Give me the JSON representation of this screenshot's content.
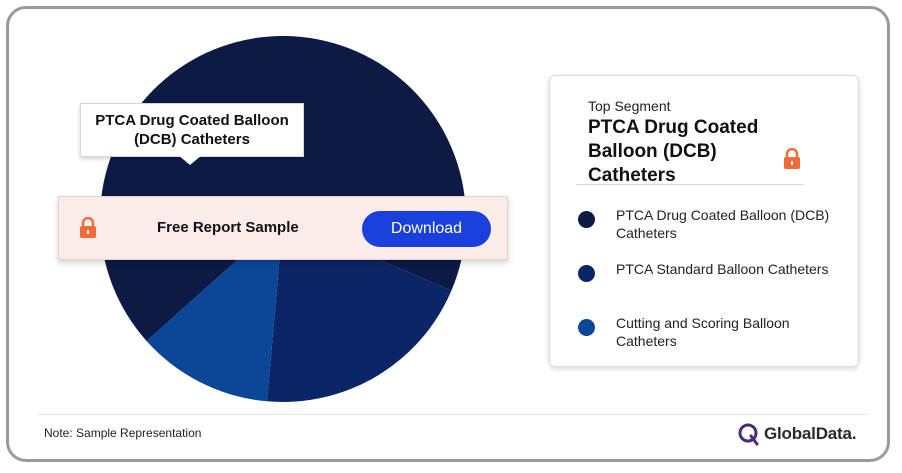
{
  "chart_data": {
    "type": "pie",
    "title": "",
    "series": [
      {
        "name": "PTCA Drug Coated Balloon (DCB) Catheters",
        "value": 68,
        "color": "#0c1a45"
      },
      {
        "name": "PTCA Standard Balloon Catheters",
        "value": 20,
        "color": "#0c2566"
      },
      {
        "name": "Cutting and Scoring Balloon Catheters",
        "value": 12,
        "color": "#0c4797"
      }
    ],
    "legend_position": "right"
  },
  "callout": {
    "text": "PTCA Drug Coated Balloon (DCB) Catheters"
  },
  "sample": {
    "label": "Free Report Sample",
    "button_label": "Download"
  },
  "top_segment": {
    "label": "Top Segment",
    "name": "PTCA Drug Coated Balloon (DCB) Catheters"
  },
  "legend": {
    "items": [
      {
        "label": "PTCA Drug Coated Balloon (DCB) Catheters",
        "color": "#0c1a45"
      },
      {
        "label": "PTCA Standard Balloon Catheters",
        "color": "#0c2566"
      },
      {
        "label": "Cutting and Scoring Balloon Catheters",
        "color": "#0c4797"
      }
    ]
  },
  "note": "Note: Sample Representation",
  "brand": {
    "name": "GlobalData.",
    "color": "#4b2a7a"
  },
  "colors": {
    "accent": "#ff6b35",
    "button": "#1b3fdc"
  },
  "icons": {
    "lock": "lock-icon",
    "logo": "globaldata-logo-icon"
  }
}
